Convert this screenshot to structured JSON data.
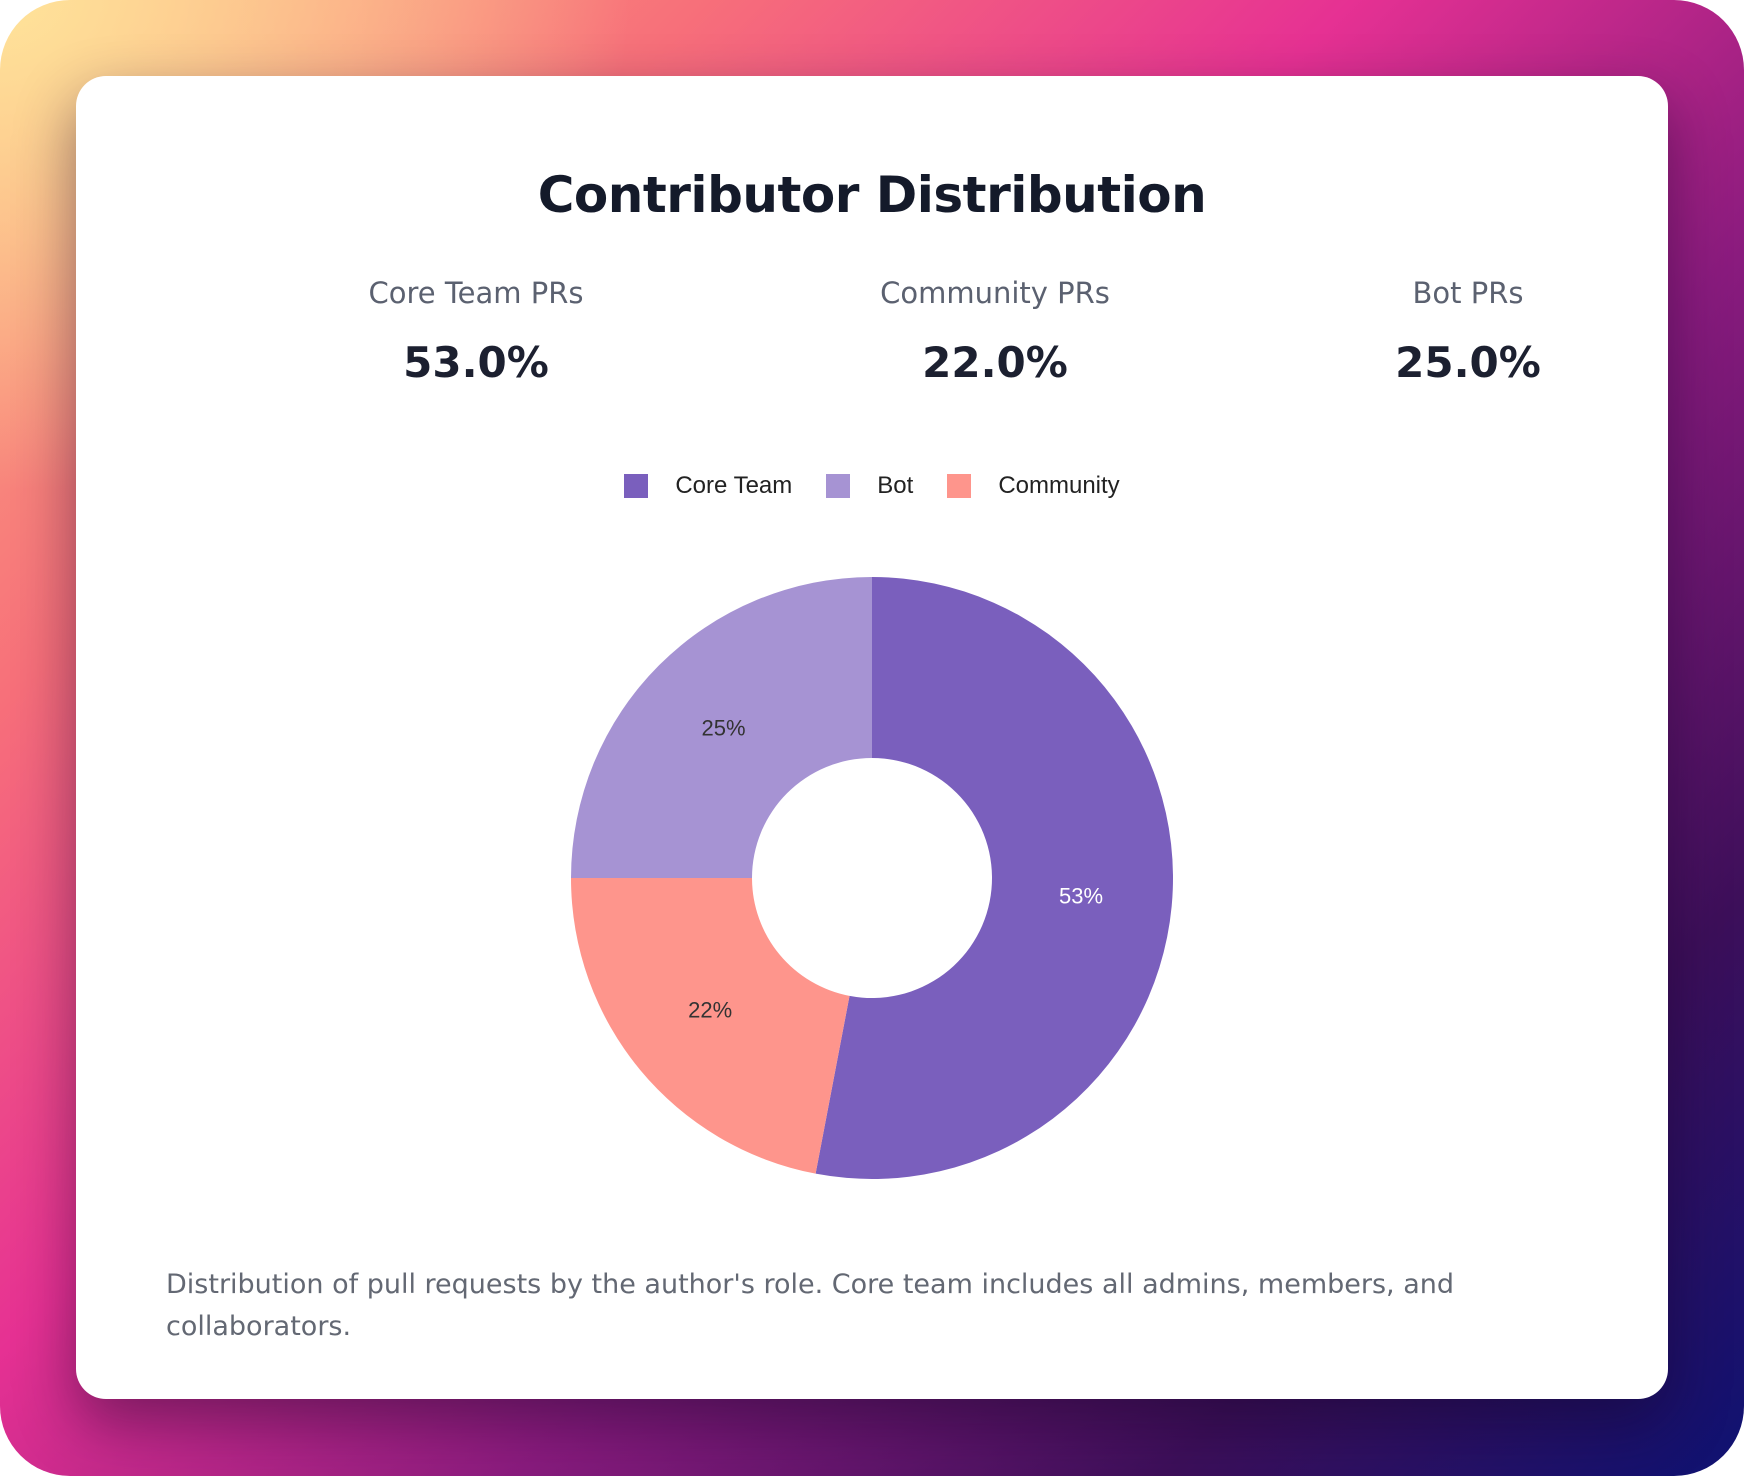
{
  "title": "Contributor Distribution",
  "stats": [
    {
      "label": "Core Team PRs",
      "value": "53.0%"
    },
    {
      "label": "Community PRs",
      "value": "22.0%"
    },
    {
      "label": "Bot PRs",
      "value": "25.0%"
    }
  ],
  "legend": [
    {
      "label": "Core Team",
      "color": "#7a5fbd"
    },
    {
      "label": "Bot",
      "color": "#a693d3"
    },
    {
      "label": "Community",
      "color": "#fe958c"
    }
  ],
  "chart_data": {
    "type": "pie",
    "variant": "donut",
    "title": "Contributor Distribution",
    "categories": [
      "Core Team",
      "Community",
      "Bot"
    ],
    "values": [
      53,
      22,
      25
    ],
    "labels": [
      "53%",
      "22%",
      "25%"
    ],
    "colors": [
      "#7a5fbd",
      "#fe958c",
      "#a693d3"
    ],
    "label_colors": [
      "#ffffff",
      "#333333",
      "#333333"
    ],
    "legend_position": "top"
  },
  "caption": "Distribution of pull requests by the author's role. Core team includes all admins, members, and collaborators."
}
